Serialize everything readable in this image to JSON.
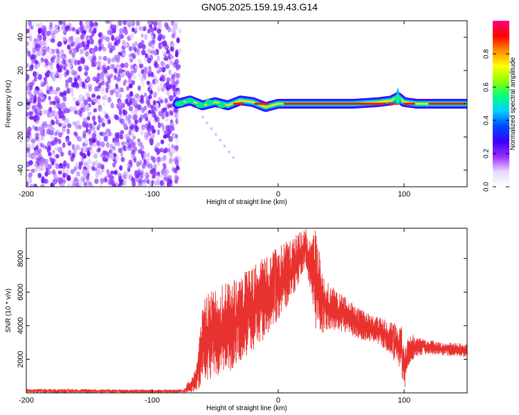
{
  "title": "GN05.2025.159.19.43.G14",
  "chart_data": [
    {
      "type": "heatmap",
      "xlabel": "Height of straight line (km)",
      "ylabel": "Frequency (Hz)",
      "xlim": [
        -200,
        150
      ],
      "ylim": [
        -50,
        50
      ],
      "xticks": [
        -200,
        -100,
        0,
        100
      ],
      "yticks": [
        -40,
        -20,
        0,
        20,
        40
      ],
      "colorbar": {
        "label": "Normalized spectral amplitude",
        "range": [
          0,
          1
        ],
        "ticks": [
          "0.0",
          "0.2",
          "0.4",
          "0.6",
          "0.8"
        ],
        "colormap": [
          "#ffffff",
          "#e8d8ff",
          "#9b2cff",
          "#3a00ff",
          "#0048ff",
          "#00d0ff",
          "#00ff80",
          "#8cff00",
          "#ffff00",
          "#ff9000",
          "#ff0000",
          "#ff0080"
        ]
      },
      "features": {
        "noise_region_x": [
          -200,
          -78
        ],
        "carrier_line_freq_hz": 0,
        "carrier_line_x": [
          -80,
          150
        ],
        "spike_x": 95
      },
      "ridge": {
        "x": [
          -80,
          -70,
          -60,
          -50,
          -40,
          -30,
          -20,
          -10,
          -5,
          0,
          20,
          40,
          60,
          80,
          90,
          95,
          100,
          110,
          120,
          150
        ],
        "freq": [
          0,
          2,
          -1,
          1,
          -1,
          2,
          1,
          -2,
          -1,
          0,
          0,
          0,
          0,
          1,
          2,
          4,
          1,
          0,
          0,
          0
        ]
      }
    },
    {
      "type": "line",
      "xlabel": "Height of straight line (km)",
      "ylabel": "SNR (10 * v/v)",
      "xlim": [
        -200,
        150
      ],
      "ylim": [
        0,
        9800
      ],
      "xticks": [
        -200,
        -100,
        0,
        100
      ],
      "yticks": [
        2000,
        4000,
        6000,
        8000
      ],
      "color": "#e8322f",
      "series": [
        {
          "envelope_x": [
            -200,
            -100,
            -75,
            -65,
            -60,
            -55,
            -50,
            -40,
            -30,
            -20,
            -10,
            0,
            10,
            18,
            22,
            25,
            30,
            35,
            40,
            50,
            60,
            70,
            80,
            90,
            98,
            100,
            105,
            110,
            120,
            130,
            140,
            150
          ],
          "envelope_lo": [
            0,
            0,
            0,
            50,
            300,
            500,
            800,
            1200,
            1800,
            2500,
            3300,
            4300,
            5500,
            6800,
            7600,
            6200,
            3800,
            3500,
            3800,
            3600,
            3300,
            3100,
            2900,
            2100,
            1000,
            100,
            1800,
            2200,
            2300,
            2200,
            2200,
            2100
          ],
          "envelope_hi": [
            250,
            200,
            200,
            1500,
            5500,
            6000,
            6200,
            6800,
            7000,
            7600,
            8100,
            8700,
            9200,
            9700,
            9800,
            9000,
            9800,
            7200,
            6500,
            5900,
            5300,
            4800,
            4500,
            4300,
            4000,
            2800,
            3600,
            3300,
            3200,
            3000,
            3000,
            2900
          ]
        }
      ]
    }
  ]
}
